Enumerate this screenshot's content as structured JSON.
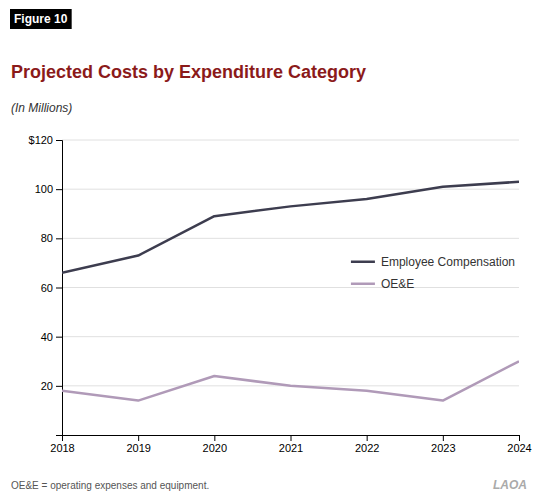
{
  "chart_data": {
    "type": "line",
    "title": "Projected Costs by Expenditure Category",
    "subtitle": "(In Millions)",
    "annotations": [
      "Figure 10",
      "OE&E = operating expenses and equipment.",
      "LAOA"
    ],
    "x": [
      2018,
      2019,
      2020,
      2021,
      2022,
      2023,
      2024
    ],
    "series": [
      {
        "name": "Employee Compensation",
        "color": "#3d3d4f",
        "values": [
          66,
          73,
          89,
          93,
          96,
          101,
          103
        ]
      },
      {
        "name": "OE&E",
        "color": "#b09ab8",
        "values": [
          18,
          14,
          24,
          20,
          18,
          14,
          30
        ]
      }
    ],
    "xlim": [
      2018,
      2024
    ],
    "xticks": [
      2018,
      2019,
      2020,
      2021,
      2022,
      2023,
      2024
    ],
    "ylim": [
      0,
      120
    ],
    "yticks": [
      20,
      40,
      60,
      80,
      100,
      {
        "value": 120,
        "label": "$120"
      }
    ],
    "grid": true,
    "legend": "right"
  }
}
